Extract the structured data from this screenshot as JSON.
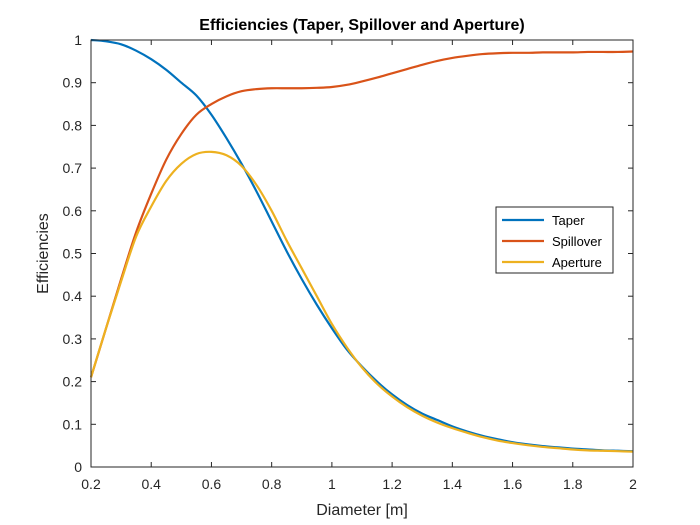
{
  "chart_data": {
    "type": "line",
    "title": "Efficiencies (Taper, Spillover and Aperture)",
    "xlabel": "Diameter [m]",
    "ylabel": "Efficiencies",
    "xlim": [
      0.2,
      2
    ],
    "ylim": [
      0,
      1
    ],
    "xticks": [
      0.2,
      0.4,
      0.6,
      0.8,
      1,
      1.2,
      1.4,
      1.6,
      1.8,
      2
    ],
    "xtick_labels": [
      "0.2",
      "0.4",
      "0.6",
      "0.8",
      "1",
      "1.2",
      "1.4",
      "1.6",
      "1.8",
      "2"
    ],
    "yticks": [
      0,
      0.1,
      0.2,
      0.3,
      0.4,
      0.5,
      0.6,
      0.7,
      0.8,
      0.9,
      1
    ],
    "ytick_labels": [
      "0",
      "0.1",
      "0.2",
      "0.3",
      "0.4",
      "0.5",
      "0.6",
      "0.7",
      "0.8",
      "0.9",
      "1"
    ],
    "grid": false,
    "box": true,
    "legend_position": "right",
    "x": [
      0.2,
      0.25,
      0.3,
      0.35,
      0.4,
      0.45,
      0.5,
      0.55,
      0.6,
      0.65,
      0.7,
      0.75,
      0.8,
      0.85,
      0.9,
      0.95,
      1.0,
      1.05,
      1.1,
      1.15,
      1.2,
      1.25,
      1.3,
      1.35,
      1.4,
      1.45,
      1.5,
      1.55,
      1.6,
      1.65,
      1.7,
      1.75,
      1.8,
      1.85,
      1.9,
      1.95,
      2.0
    ],
    "series": [
      {
        "name": "Taper",
        "color": "#0072BD",
        "values": [
          1.0,
          0.997,
          0.99,
          0.975,
          0.955,
          0.93,
          0.9,
          0.87,
          0.825,
          0.77,
          0.71,
          0.645,
          0.575,
          0.505,
          0.44,
          0.38,
          0.325,
          0.275,
          0.235,
          0.2,
          0.17,
          0.145,
          0.125,
          0.11,
          0.095,
          0.083,
          0.073,
          0.065,
          0.058,
          0.053,
          0.049,
          0.046,
          0.043,
          0.041,
          0.039,
          0.038,
          0.037
        ]
      },
      {
        "name": "Spillover",
        "color": "#D95319",
        "values": [
          0.21,
          0.325,
          0.44,
          0.55,
          0.64,
          0.72,
          0.78,
          0.825,
          0.85,
          0.868,
          0.88,
          0.885,
          0.887,
          0.887,
          0.887,
          0.888,
          0.89,
          0.895,
          0.903,
          0.912,
          0.922,
          0.932,
          0.942,
          0.951,
          0.958,
          0.963,
          0.967,
          0.969,
          0.97,
          0.97,
          0.971,
          0.971,
          0.971,
          0.972,
          0.972,
          0.972,
          0.973
        ]
      },
      {
        "name": "Aperture",
        "color": "#EDB120",
        "values": [
          0.21,
          0.325,
          0.435,
          0.54,
          0.61,
          0.67,
          0.71,
          0.733,
          0.738,
          0.73,
          0.705,
          0.66,
          0.6,
          0.53,
          0.465,
          0.4,
          0.335,
          0.28,
          0.233,
          0.195,
          0.165,
          0.14,
          0.12,
          0.104,
          0.091,
          0.08,
          0.07,
          0.062,
          0.056,
          0.051,
          0.047,
          0.044,
          0.041,
          0.039,
          0.038,
          0.037,
          0.036
        ]
      }
    ]
  }
}
